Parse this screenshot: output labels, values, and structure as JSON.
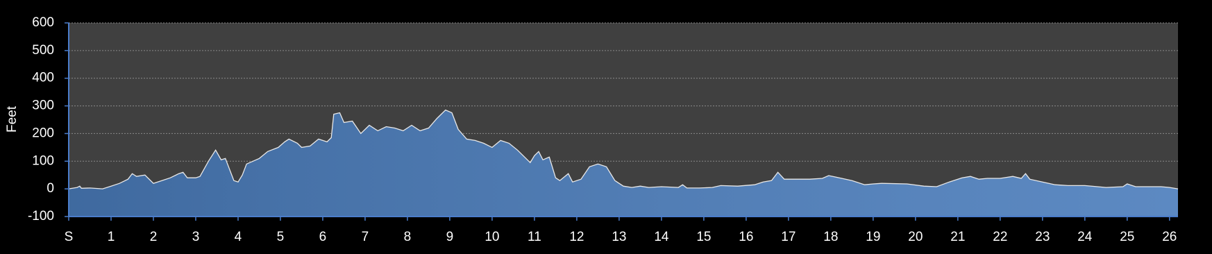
{
  "chart_data": {
    "type": "area",
    "y_label": "Feet",
    "xlim": [
      0,
      26.2
    ],
    "ylim": [
      -100,
      600
    ],
    "yticks": [
      -100,
      0,
      100,
      200,
      300,
      400,
      500,
      600
    ],
    "xticks": [
      {
        "value": 0,
        "label": "S"
      },
      1,
      2,
      3,
      4,
      5,
      6,
      7,
      8,
      9,
      10,
      11,
      12,
      13,
      14,
      15,
      16,
      17,
      18,
      19,
      20,
      21,
      22,
      23,
      24,
      25,
      26
    ],
    "grid": true,
    "color": "#4a7cbb",
    "x": [
      0,
      0.2,
      0.26,
      0.3,
      0.5,
      0.8,
      1.0,
      1.2,
      1.4,
      1.5,
      1.6,
      1.8,
      2.0,
      2.2,
      2.4,
      2.6,
      2.7,
      2.8,
      3.0,
      3.1,
      3.3,
      3.47,
      3.6,
      3.7,
      3.9,
      4.0,
      4.1,
      4.2,
      4.5,
      4.7,
      4.95,
      5.1,
      5.2,
      5.4,
      5.5,
      5.7,
      5.9,
      6.1,
      6.2,
      6.26,
      6.4,
      6.5,
      6.7,
      6.9,
      7.1,
      7.3,
      7.5,
      7.7,
      7.9,
      8.1,
      8.3,
      8.5,
      8.7,
      8.9,
      9.05,
      9.2,
      9.4,
      9.6,
      9.8,
      10.0,
      10.2,
      10.4,
      10.6,
      10.9,
      11.0,
      11.1,
      11.2,
      11.35,
      11.5,
      11.6,
      11.8,
      11.9,
      12.1,
      12.3,
      12.5,
      12.7,
      12.9,
      13.1,
      13.3,
      13.5,
      13.7,
      14.0,
      14.4,
      14.5,
      14.6,
      14.9,
      15.2,
      15.4,
      15.8,
      16.2,
      16.4,
      16.6,
      16.75,
      16.9,
      17.2,
      17.5,
      17.8,
      17.95,
      18.2,
      18.5,
      18.8,
      19.0,
      19.2,
      19.8,
      20.2,
      20.5,
      20.8,
      21.1,
      21.3,
      21.5,
      21.7,
      22.0,
      22.3,
      22.5,
      22.6,
      22.7,
      23.0,
      23.3,
      23.6,
      24.0,
      24.3,
      24.5,
      24.9,
      25.0,
      25.2,
      25.5,
      25.8,
      26.0,
      26.2
    ],
    "values": [
      0,
      5,
      10,
      2,
      3,
      0,
      10,
      20,
      35,
      55,
      45,
      50,
      20,
      30,
      40,
      55,
      60,
      40,
      40,
      45,
      100,
      140,
      105,
      110,
      30,
      25,
      50,
      90,
      110,
      135,
      150,
      170,
      180,
      165,
      150,
      155,
      180,
      170,
      185,
      270,
      275,
      240,
      245,
      200,
      230,
      210,
      225,
      220,
      210,
      230,
      210,
      220,
      255,
      285,
      275,
      215,
      180,
      175,
      165,
      150,
      175,
      165,
      140,
      95,
      120,
      135,
      105,
      115,
      40,
      30,
      55,
      25,
      35,
      80,
      90,
      80,
      30,
      10,
      5,
      10,
      5,
      8,
      5,
      15,
      3,
      3,
      5,
      12,
      10,
      15,
      25,
      30,
      60,
      35,
      35,
      35,
      38,
      48,
      40,
      30,
      15,
      18,
      20,
      18,
      10,
      8,
      25,
      40,
      45,
      35,
      38,
      38,
      45,
      38,
      55,
      35,
      25,
      15,
      12,
      12,
      8,
      5,
      8,
      18,
      8,
      8,
      8,
      5,
      0
    ]
  }
}
